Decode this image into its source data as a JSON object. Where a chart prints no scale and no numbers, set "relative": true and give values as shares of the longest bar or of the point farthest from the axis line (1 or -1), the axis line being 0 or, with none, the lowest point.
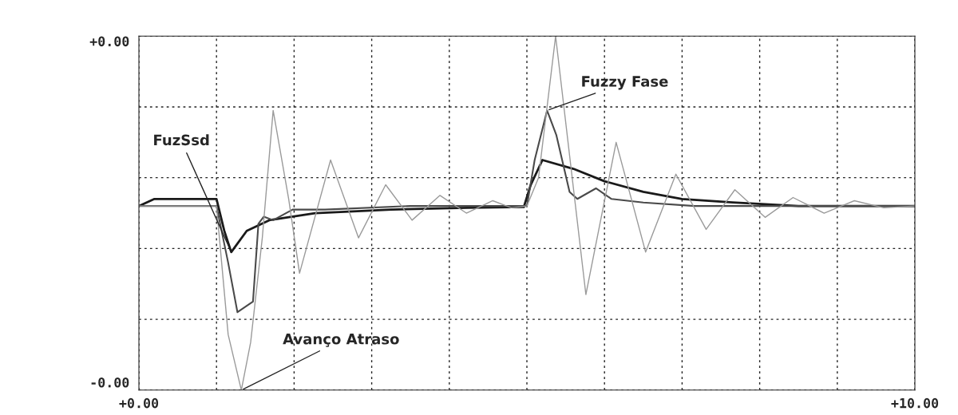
{
  "chart_data": {
    "type": "line",
    "relative": true,
    "xlim": [
      0,
      10
    ],
    "xticks": [
      {
        "value": 0,
        "label": "+0.00"
      },
      {
        "value": 1,
        "label": null
      },
      {
        "value": 2,
        "label": null
      },
      {
        "value": 3,
        "label": null
      },
      {
        "value": 4,
        "label": null
      },
      {
        "value": 5,
        "label": null
      },
      {
        "value": 6,
        "label": null
      },
      {
        "value": 7,
        "label": null
      },
      {
        "value": 8,
        "label": null
      },
      {
        "value": 9,
        "label": null
      },
      {
        "value": 10,
        "label": "+10.00"
      }
    ],
    "grid": true,
    "line_style": "solid",
    "marker": "none",
    "annotations": [
      "+0.00",
      "-0.00"
    ],
    "series": [
      {
        "name": "FuzSsd",
        "color": "#1a1a1a",
        "x": [
          0,
          0.2,
          1.0,
          1.1,
          1.19,
          1.39,
          1.68,
          2.27,
          3.25,
          4.23,
          4.96,
          5.05,
          5.2,
          5.6,
          6.0,
          6.5,
          7.0,
          7.65,
          8.5,
          10
        ],
        "values": [
          0.52,
          0.54,
          0.54,
          0.45,
          0.39,
          0.45,
          0.48,
          0.5,
          0.51,
          0.515,
          0.517,
          0.58,
          0.65,
          0.625,
          0.59,
          0.56,
          0.54,
          0.53,
          0.52,
          0.52
        ]
      },
      {
        "name": "Fuzzy Fase",
        "color": "#4a4a4a",
        "x": [
          0,
          1.0,
          1.15,
          1.27,
          1.47,
          1.54,
          1.61,
          1.73,
          1.98,
          2.4,
          3.5,
          5.0,
          5.1,
          5.26,
          5.38,
          5.55,
          5.65,
          5.89,
          6.09,
          6.5,
          7.16,
          10
        ],
        "values": [
          0.52,
          0.52,
          0.36,
          0.22,
          0.25,
          0.47,
          0.49,
          0.48,
          0.51,
          0.51,
          0.52,
          0.52,
          0.65,
          0.79,
          0.72,
          0.56,
          0.54,
          0.57,
          0.54,
          0.53,
          0.52,
          0.52
        ]
      },
      {
        "name": "Avanço Atraso",
        "color": "#9a9a9a",
        "x": [
          0,
          1.0,
          1.15,
          1.32,
          1.44,
          1.59,
          1.73,
          1.93,
          2.07,
          2.47,
          2.83,
          3.18,
          3.52,
          3.88,
          4.22,
          4.56,
          4.8,
          5.0,
          5.15,
          5.37,
          5.76,
          6.15,
          6.53,
          6.92,
          7.31,
          7.68,
          8.07,
          8.43,
          8.83,
          9.22,
          9.6,
          10
        ],
        "values": [
          0.52,
          0.52,
          0.157,
          0.0,
          0.135,
          0.43,
          0.79,
          0.54,
          0.33,
          0.65,
          0.43,
          0.58,
          0.48,
          0.55,
          0.5,
          0.535,
          0.515,
          0.52,
          0.6,
          1.0,
          0.27,
          0.7,
          0.39,
          0.61,
          0.454,
          0.566,
          0.488,
          0.544,
          0.5,
          0.535,
          0.515,
          0.52
        ]
      }
    ]
  }
}
